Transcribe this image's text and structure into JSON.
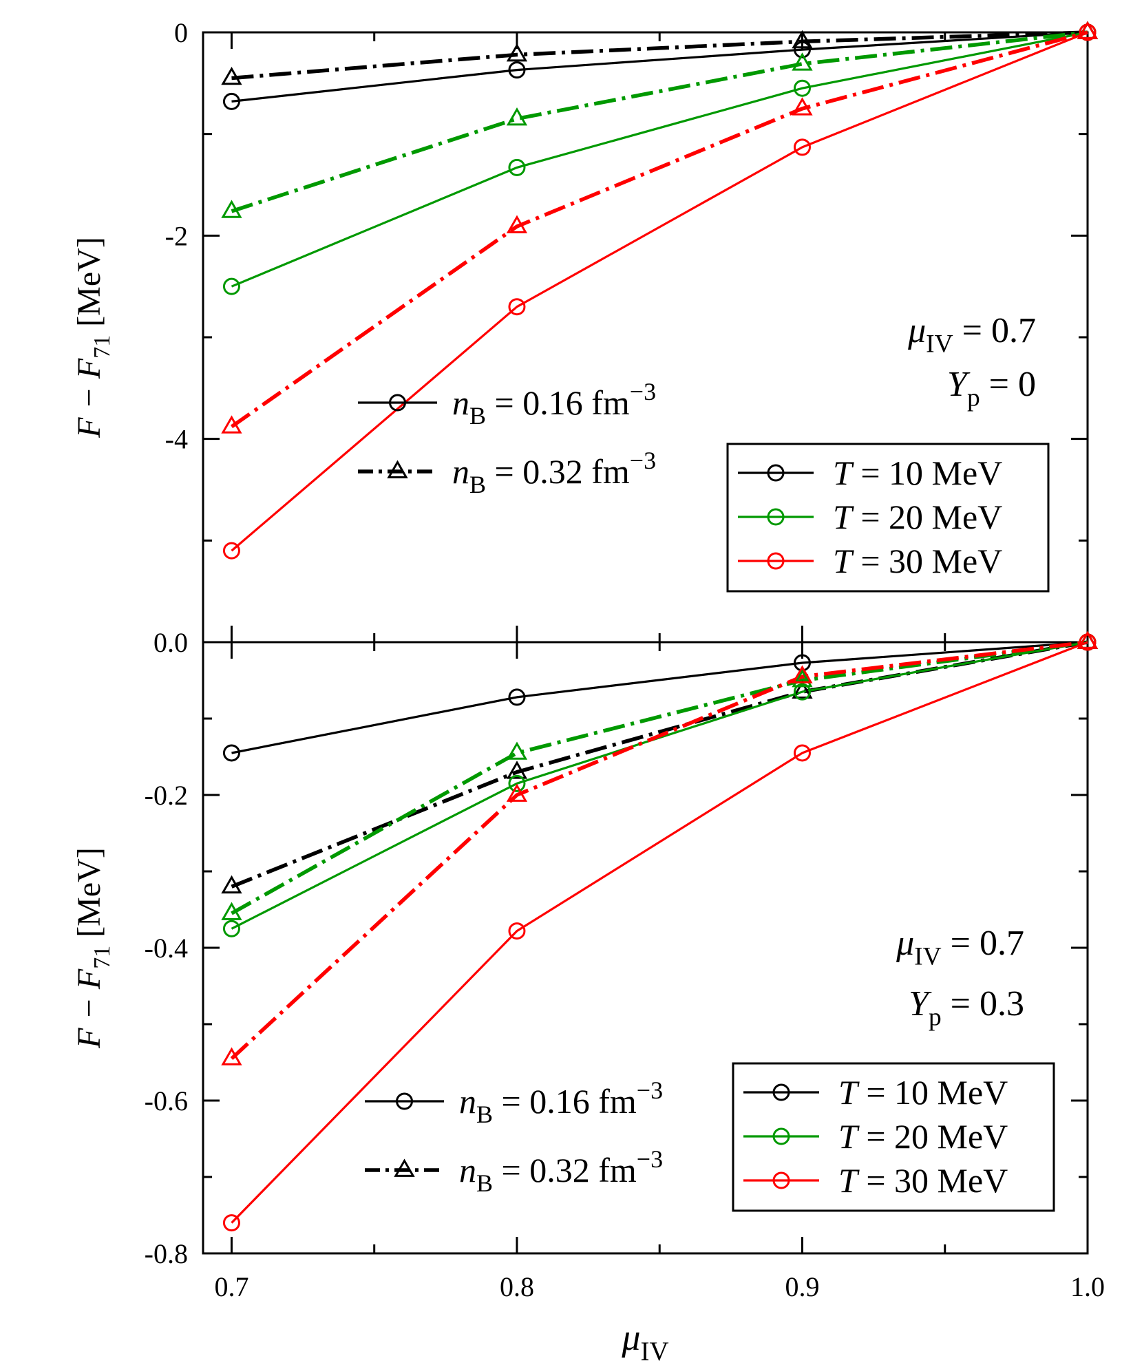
{
  "chart_data": [
    {
      "type": "line",
      "panel": "top",
      "x": [
        0.7,
        0.8,
        0.9,
        1.0
      ],
      "xlim": [
        0.69,
        1.0
      ],
      "ylim": [
        -6,
        0
      ],
      "yticks": [
        0,
        -2,
        -4
      ],
      "ytick_labels": [
        "0",
        "-2",
        "-4"
      ],
      "xtick_labels": [],
      "ylabel": {
        "main": "F − F",
        "sub": "71",
        "unit": " [MeV]"
      },
      "params": [
        {
          "sym": "μ",
          "sub": "IV",
          "rest": " = 0.7"
        },
        {
          "sym": "Y",
          "sub": "p",
          "rest": " = 0"
        }
      ],
      "series": [
        {
          "name": "T = 10 MeV, n_B = 0.16",
          "color": "#000000",
          "style": "solid",
          "marker": "circle",
          "values": [
            -0.68,
            -0.37,
            -0.17,
            0
          ]
        },
        {
          "name": "T = 10 MeV, n_B = 0.32",
          "color": "#000000",
          "style": "dashdot",
          "marker": "triangle",
          "values": [
            -0.45,
            -0.22,
            -0.09,
            0
          ]
        },
        {
          "name": "T = 20 MeV, n_B = 0.16",
          "color": "#009900",
          "style": "solid",
          "marker": "circle",
          "values": [
            -2.5,
            -1.33,
            -0.55,
            0
          ]
        },
        {
          "name": "T = 20 MeV, n_B = 0.32",
          "color": "#009900",
          "style": "dashdot",
          "marker": "triangle",
          "values": [
            -1.76,
            -0.85,
            -0.31,
            0
          ]
        },
        {
          "name": "T = 30 MeV, n_B = 0.16",
          "color": "#ff0000",
          "style": "solid",
          "marker": "circle",
          "values": [
            -5.1,
            -2.7,
            -1.13,
            0
          ]
        },
        {
          "name": "T = 30 MeV, n_B = 0.32",
          "color": "#ff0000",
          "style": "dashdot",
          "marker": "triangle",
          "values": [
            -3.88,
            -1.91,
            -0.75,
            0
          ]
        }
      ],
      "legend_density": [
        {
          "style": "solid",
          "marker": "circle",
          "sym": "n",
          "sub": "B",
          "rest": " = 0.16 fm",
          "sup": "−3"
        },
        {
          "style": "dashdot",
          "marker": "triangle",
          "sym": "n",
          "sub": "B",
          "rest": " = 0.32 fm",
          "sup": "−3"
        }
      ],
      "legend_temperature": [
        {
          "color": "#000000",
          "sym": "T",
          "rest": " = 10 MeV"
        },
        {
          "color": "#009900",
          "sym": "T",
          "rest": " = 20 MeV"
        },
        {
          "color": "#ff0000",
          "sym": "T",
          "rest": " = 30 MeV"
        }
      ]
    },
    {
      "type": "line",
      "panel": "bottom",
      "x": [
        0.7,
        0.8,
        0.9,
        1.0
      ],
      "xlim": [
        0.69,
        1.0
      ],
      "ylim": [
        -0.8,
        0
      ],
      "yticks": [
        0,
        -0.2,
        -0.4,
        -0.6,
        -0.8
      ],
      "ytick_labels": [
        "0.0",
        "-0.2",
        "-0.4",
        "-0.6",
        "-0.8"
      ],
      "xtick_labels": [
        "0.7",
        "0.8",
        "0.9",
        "1.0"
      ],
      "xlabel": {
        "sym": "μ",
        "sub": "IV"
      },
      "ylabel": {
        "main": "F − F",
        "sub": "71",
        "unit": " [MeV]"
      },
      "params": [
        {
          "sym": "μ",
          "sub": "IV",
          "rest": " = 0.7"
        },
        {
          "sym": "Y",
          "sub": "p",
          "rest": " = 0.3"
        }
      ],
      "series": [
        {
          "name": "T = 10 MeV, n_B = 0.16",
          "color": "#000000",
          "style": "solid",
          "marker": "circle",
          "values": [
            -0.145,
            -0.072,
            -0.027,
            0
          ]
        },
        {
          "name": "T = 10 MeV, n_B = 0.32",
          "color": "#000000",
          "style": "dashdot",
          "marker": "triangle",
          "values": [
            -0.32,
            -0.17,
            -0.065,
            0
          ]
        },
        {
          "name": "T = 20 MeV, n_B = 0.16",
          "color": "#009900",
          "style": "solid",
          "marker": "circle",
          "values": [
            -0.375,
            -0.185,
            -0.065,
            0
          ]
        },
        {
          "name": "T = 20 MeV, n_B = 0.32",
          "color": "#009900",
          "style": "dashdot",
          "marker": "triangle",
          "values": [
            -0.355,
            -0.145,
            -0.05,
            0
          ]
        },
        {
          "name": "T = 30 MeV, n_B = 0.16",
          "color": "#ff0000",
          "style": "solid",
          "marker": "circle",
          "values": [
            -0.76,
            -0.378,
            -0.145,
            0
          ]
        },
        {
          "name": "T = 30 MeV, n_B = 0.32",
          "color": "#ff0000",
          "style": "dashdot",
          "marker": "triangle",
          "values": [
            -0.545,
            -0.2,
            -0.045,
            0
          ]
        }
      ],
      "legend_density": [
        {
          "style": "solid",
          "marker": "circle",
          "sym": "n",
          "sub": "B",
          "rest": " = 0.16 fm",
          "sup": "−3"
        },
        {
          "style": "dashdot",
          "marker": "triangle",
          "sym": "n",
          "sub": "B",
          "rest": " = 0.32 fm",
          "sup": "−3"
        }
      ],
      "legend_temperature": [
        {
          "color": "#000000",
          "sym": "T",
          "rest": " = 10 MeV"
        },
        {
          "color": "#009900",
          "sym": "T",
          "rest": " = 20 MeV"
        },
        {
          "color": "#ff0000",
          "sym": "T",
          "rest": " = 30 MeV"
        }
      ]
    }
  ]
}
